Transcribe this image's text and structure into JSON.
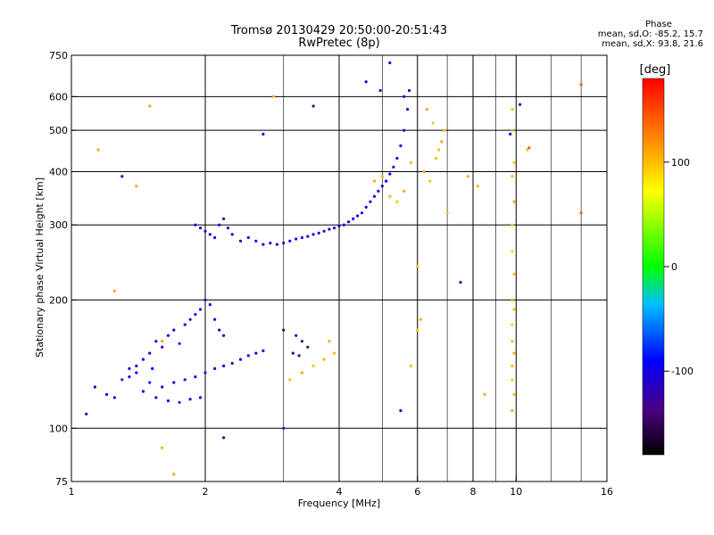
{
  "header": {
    "title_line1": "Tromsø 20130429 20:50:00-20:51:43",
    "title_line2": "RwPretec (8p)"
  },
  "phase_stats": {
    "heading": "Phase",
    "line_o": "mean, sd,O: -85.2, 15.7",
    "line_x": "mean, sd,X:  93.8, 21.6"
  },
  "colorbar": {
    "unit_label": "[deg]",
    "ticks": [
      "100",
      "0",
      "-100"
    ],
    "tick_values": [
      100,
      0,
      -100
    ],
    "range": [
      -180,
      180
    ]
  },
  "chart_data": {
    "type": "scatter",
    "title": "Tromsø 20130429 20:50:00-20:51:43",
    "subtitle": "RwPretec (8p)",
    "xlabel": "Frequency [MHz]",
    "ylabel": "Stationary phase Virtual Height [km]",
    "x_scale": "log",
    "y_scale": "log",
    "xlim": [
      1,
      16
    ],
    "ylim": [
      75,
      750
    ],
    "x_ticks": [
      1,
      2,
      4,
      6,
      8,
      10,
      16
    ],
    "x_tick_labels": [
      "1",
      "2",
      "4",
      "6",
      "8",
      "10",
      "16"
    ],
    "x_minor_ticks": [
      3,
      5,
      7,
      9,
      12,
      14
    ],
    "x_gridlines": [
      2,
      4,
      6,
      8,
      10
    ],
    "y_ticks": [
      75,
      100,
      200,
      300,
      400,
      500,
      600,
      750
    ],
    "y_tick_labels": [
      "75",
      "100",
      "200",
      "300",
      "400",
      "500",
      "600",
      "750"
    ],
    "y_gridlines": [
      100,
      200,
      300,
      400,
      500,
      600
    ],
    "grid": true,
    "points": [
      [
        1.08,
        108,
        -100
      ],
      [
        1.13,
        125,
        -110
      ],
      [
        1.2,
        120,
        -90
      ],
      [
        1.25,
        118,
        -100
      ],
      [
        1.3,
        130,
        -80
      ],
      [
        1.35,
        132,
        -100
      ],
      [
        1.4,
        140,
        -110
      ],
      [
        1.45,
        145,
        -95
      ],
      [
        1.5,
        150,
        -100
      ],
      [
        1.52,
        138,
        -90
      ],
      [
        1.55,
        160,
        -100
      ],
      [
        1.6,
        155,
        -110
      ],
      [
        1.65,
        165,
        -95
      ],
      [
        1.7,
        170,
        -100
      ],
      [
        1.75,
        158,
        -80
      ],
      [
        1.8,
        175,
        -100
      ],
      [
        1.85,
        180,
        -120
      ],
      [
        1.9,
        185,
        -95
      ],
      [
        1.95,
        190,
        -100
      ],
      [
        2.0,
        200,
        -110
      ],
      [
        2.05,
        195,
        -90
      ],
      [
        2.1,
        180,
        -100
      ],
      [
        2.15,
        170,
        -105
      ],
      [
        2.2,
        165,
        -95
      ],
      [
        1.6,
        125,
        -100
      ],
      [
        1.7,
        128,
        -110
      ],
      [
        1.8,
        130,
        -90
      ],
      [
        1.9,
        132,
        -100
      ],
      [
        2.0,
        135,
        -120
      ],
      [
        2.1,
        138,
        -100
      ],
      [
        2.2,
        140,
        -95
      ],
      [
        2.3,
        142,
        -100
      ],
      [
        2.4,
        145,
        -90
      ],
      [
        2.5,
        148,
        -100
      ],
      [
        2.6,
        150,
        -110
      ],
      [
        2.7,
        152,
        -100
      ],
      [
        1.55,
        118,
        -100
      ],
      [
        1.65,
        116,
        -95
      ],
      [
        1.75,
        115,
        -110
      ],
      [
        1.85,
        117,
        -100
      ],
      [
        1.95,
        118,
        -90
      ],
      [
        1.45,
        122,
        -100
      ],
      [
        1.5,
        128,
        -80
      ],
      [
        1.4,
        135,
        -100
      ],
      [
        1.35,
        138,
        -110
      ],
      [
        1.9,
        300,
        -100
      ],
      [
        1.95,
        295,
        -110
      ],
      [
        2.0,
        290,
        -95
      ],
      [
        2.05,
        285,
        -100
      ],
      [
        2.1,
        280,
        -90
      ],
      [
        2.15,
        300,
        -100
      ],
      [
        2.2,
        310,
        -110
      ],
      [
        2.25,
        295,
        -100
      ],
      [
        2.3,
        285,
        -95
      ],
      [
        2.4,
        275,
        -100
      ],
      [
        2.5,
        280,
        -110
      ],
      [
        2.6,
        275,
        -100
      ],
      [
        2.7,
        270,
        -90
      ],
      [
        2.8,
        272,
        -100
      ],
      [
        2.9,
        270,
        -110
      ],
      [
        3.0,
        272,
        -100
      ],
      [
        3.1,
        275,
        -95
      ],
      [
        3.2,
        278,
        -100
      ],
      [
        3.3,
        280,
        -110
      ],
      [
        3.4,
        282,
        -100
      ],
      [
        3.5,
        285,
        -90
      ],
      [
        3.6,
        287,
        -100
      ],
      [
        3.7,
        290,
        -110
      ],
      [
        3.8,
        293,
        -100
      ],
      [
        3.9,
        295,
        -95
      ],
      [
        4.0,
        298,
        -100
      ],
      [
        4.1,
        300,
        -110
      ],
      [
        4.2,
        305,
        -100
      ],
      [
        4.3,
        310,
        -90
      ],
      [
        4.4,
        315,
        -100
      ],
      [
        4.5,
        320,
        -110
      ],
      [
        4.6,
        330,
        -100
      ],
      [
        4.7,
        340,
        -95
      ],
      [
        4.8,
        350,
        -100
      ],
      [
        4.9,
        360,
        -110
      ],
      [
        5.0,
        370,
        -100
      ],
      [
        5.1,
        380,
        -90
      ],
      [
        5.2,
        395,
        -100
      ],
      [
        5.3,
        410,
        -110
      ],
      [
        5.4,
        430,
        -100
      ],
      [
        5.5,
        460,
        -95
      ],
      [
        5.6,
        500,
        -100
      ],
      [
        5.7,
        560,
        -110
      ],
      [
        5.75,
        620,
        -100
      ],
      [
        5.6,
        600,
        -90
      ],
      [
        4.8,
        380,
        110
      ],
      [
        5.0,
        390,
        100
      ],
      [
        5.2,
        350,
        105
      ],
      [
        5.4,
        340,
        95
      ],
      [
        5.6,
        360,
        110
      ],
      [
        5.8,
        420,
        100
      ],
      [
        6.2,
        400,
        110
      ],
      [
        6.4,
        380,
        95
      ],
      [
        6.6,
        430,
        100
      ],
      [
        6.8,
        470,
        110
      ],
      [
        6.9,
        500,
        100
      ],
      [
        6.5,
        520,
        95
      ],
      [
        6.3,
        560,
        110
      ],
      [
        6.7,
        450,
        100
      ],
      [
        3.8,
        160,
        110
      ],
      [
        3.9,
        150,
        100
      ],
      [
        3.7,
        145,
        105
      ],
      [
        3.5,
        140,
        95
      ],
      [
        3.3,
        135,
        110
      ],
      [
        3.1,
        130,
        100
      ],
      [
        3.0,
        170,
        -130
      ],
      [
        3.2,
        165,
        -120
      ],
      [
        3.4,
        155,
        -140
      ],
      [
        3.3,
        160,
        -130
      ],
      [
        3.15,
        150,
        -120
      ],
      [
        3.25,
        148,
        -130
      ],
      [
        9.8,
        560,
        100
      ],
      [
        9.8,
        500,
        110
      ],
      [
        9.9,
        420,
        95
      ],
      [
        9.8,
        390,
        100
      ],
      [
        9.9,
        340,
        110
      ],
      [
        9.8,
        300,
        100
      ],
      [
        9.8,
        260,
        90
      ],
      [
        9.9,
        230,
        100
      ],
      [
        9.8,
        200,
        110
      ],
      [
        9.9,
        190,
        100
      ],
      [
        9.8,
        175,
        95
      ],
      [
        9.8,
        160,
        100
      ],
      [
        9.9,
        150,
        110
      ],
      [
        9.8,
        140,
        100
      ],
      [
        9.8,
        130,
        95
      ],
      [
        9.9,
        120,
        100
      ],
      [
        9.8,
        110,
        110
      ],
      [
        6.0,
        240,
        100
      ],
      [
        6.1,
        180,
        110
      ],
      [
        6.0,
        170,
        95
      ],
      [
        5.8,
        140,
        100
      ],
      [
        5.5,
        110,
        -100
      ],
      [
        7.0,
        320,
        100
      ],
      [
        7.5,
        220,
        -120
      ],
      [
        7.8,
        390,
        110
      ],
      [
        8.2,
        370,
        100
      ],
      [
        8.5,
        120,
        110
      ],
      [
        9.7,
        490,
        -100
      ],
      [
        10.2,
        575,
        -110
      ],
      [
        10.6,
        450,
        100
      ],
      [
        10.7,
        455,
        140
      ],
      [
        14.0,
        320,
        140
      ],
      [
        14.0,
        640,
        140
      ],
      [
        1.3,
        390,
        -100
      ],
      [
        1.4,
        370,
        110
      ],
      [
        1.15,
        450,
        110
      ],
      [
        1.5,
        570,
        110
      ],
      [
        1.6,
        160,
        110
      ],
      [
        1.25,
        210,
        110
      ],
      [
        1.6,
        90,
        110
      ],
      [
        1.7,
        78,
        110
      ],
      [
        2.2,
        95,
        -130
      ],
      [
        3.0,
        100,
        -110
      ],
      [
        2.7,
        490,
        -100
      ],
      [
        2.85,
        600,
        110
      ],
      [
        3.5,
        570,
        -130
      ],
      [
        4.6,
        650,
        -100
      ],
      [
        4.95,
        620,
        -110
      ],
      [
        5.2,
        720,
        -100
      ]
    ],
    "color_scale": "rainbow (black at -180, blue -100, cyan, green 0, yellow 100, red 180)",
    "colorbar_label": "[deg]",
    "colorbar_ticks": [
      100,
      0,
      -100
    ]
  }
}
